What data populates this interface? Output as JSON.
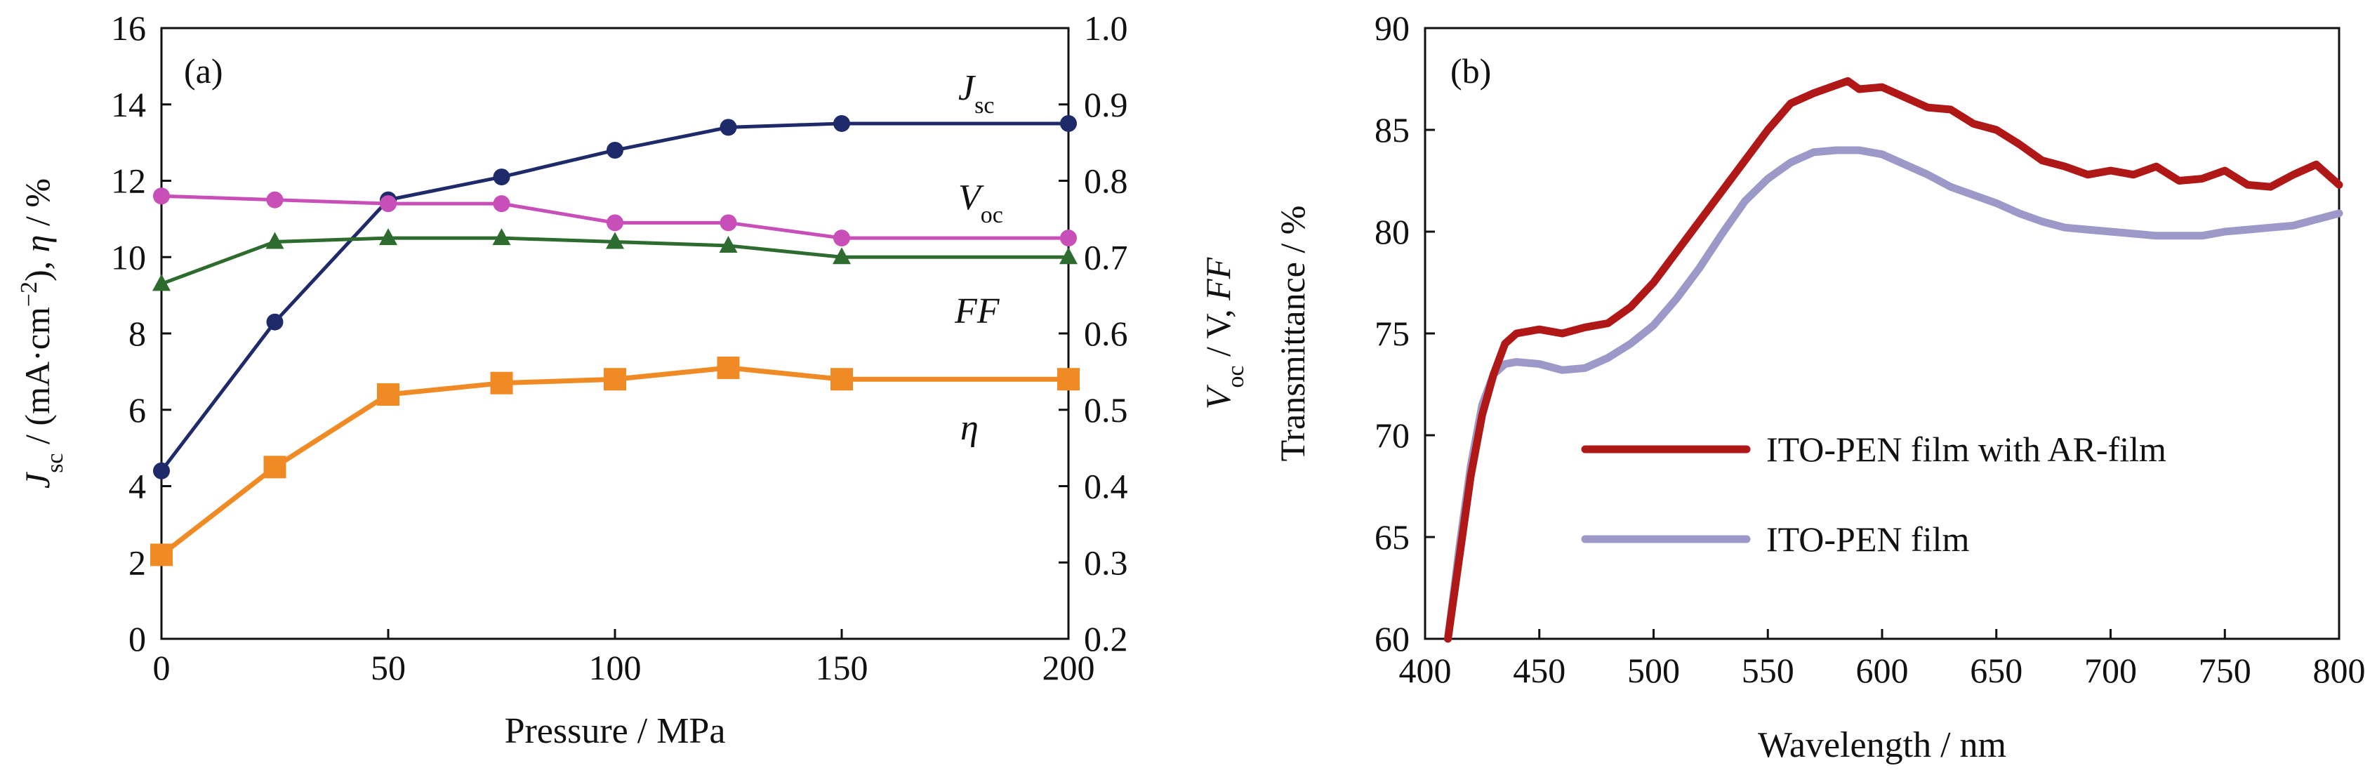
{
  "chart_data": [
    {
      "panel": "(a)",
      "type": "line",
      "xlabel": "Pressure / MPa",
      "ylabel_left_parts": [
        "J",
        "sc",
        " / (mA·cm",
        "−2",
        "), ",
        "η",
        " / %"
      ],
      "ylabel_right_parts": [
        "V",
        "oc",
        " / V, ",
        "FF"
      ],
      "xlim": [
        0,
        200
      ],
      "xticks": [
        0,
        50,
        100,
        150,
        200
      ],
      "ylim_left": [
        0,
        16
      ],
      "yticks_left": [
        0,
        2,
        4,
        6,
        8,
        10,
        12,
        14,
        16
      ],
      "ylim_right": [
        0.2,
        1.0
      ],
      "yticks_right": [
        "0.2",
        "0.3",
        "0.4",
        "0.5",
        "0.6",
        "0.7",
        "0.8",
        "0.9",
        "1.0"
      ],
      "x": [
        0,
        25,
        50,
        75,
        100,
        125,
        150,
        200
      ],
      "series": [
        {
          "label_main": "J",
          "label_sub": "sc",
          "axis": "left",
          "color": "#1f2a6b",
          "marker": "circle",
          "values": [
            4.4,
            8.3,
            11.5,
            12.1,
            12.8,
            13.4,
            13.5,
            13.5
          ]
        },
        {
          "label_main": "V",
          "label_sub": "oc",
          "axis": "right",
          "color": "#c84fb8",
          "marker": "circle",
          "values": [
            0.78,
            0.775,
            0.77,
            0.77,
            0.745,
            0.745,
            0.725,
            0.725
          ]
        },
        {
          "label_main": "FF",
          "label_sub": "",
          "axis": "right",
          "color": "#2e6b2e",
          "marker": "triangle",
          "values": [
            0.665,
            0.72,
            0.725,
            0.725,
            0.72,
            0.715,
            0.7,
            0.7
          ]
        },
        {
          "label_main": "η",
          "label_sub": "",
          "axis": "left",
          "color": "#f08a24",
          "marker": "square",
          "values": [
            2.2,
            4.5,
            6.4,
            6.7,
            6.8,
            7.1,
            6.8,
            6.8
          ]
        }
      ]
    },
    {
      "panel": "(b)",
      "type": "line",
      "xlabel": "Wavelength / nm",
      "ylabel": "Transmittance / %",
      "xlim": [
        400,
        800
      ],
      "xticks": [
        400,
        450,
        500,
        550,
        600,
        650,
        700,
        750,
        800
      ],
      "ylim": [
        60,
        90
      ],
      "yticks": [
        60,
        65,
        70,
        75,
        80,
        85,
        90
      ],
      "legend": [
        "ITO-PEN film with AR-film",
        "ITO-PEN film"
      ],
      "series": [
        {
          "name": "ITO-PEN film with AR-film",
          "color": "#b01818",
          "x": [
            410,
            415,
            420,
            425,
            430,
            435,
            440,
            450,
            460,
            470,
            480,
            490,
            500,
            510,
            520,
            530,
            540,
            550,
            560,
            570,
            580,
            585,
            590,
            600,
            610,
            620,
            630,
            640,
            650,
            660,
            670,
            680,
            690,
            700,
            710,
            720,
            730,
            740,
            750,
            760,
            770,
            780,
            790,
            800
          ],
          "y": [
            60,
            64,
            68,
            71,
            73,
            74.5,
            75,
            75.2,
            75,
            75.3,
            75.5,
            76.3,
            77.5,
            79,
            80.5,
            82,
            83.5,
            85,
            86.3,
            86.8,
            87.2,
            87.4,
            87,
            87.1,
            86.6,
            86.1,
            86,
            85.3,
            85,
            84.3,
            83.5,
            83.2,
            82.8,
            83,
            82.8,
            83.2,
            82.5,
            82.6,
            83,
            82.3,
            82.2,
            82.8,
            83.3,
            82.3
          ]
        },
        {
          "name": "ITO-PEN film",
          "color": "#9c98c8",
          "x": [
            410,
            415,
            420,
            425,
            430,
            435,
            440,
            450,
            460,
            470,
            480,
            490,
            500,
            510,
            520,
            530,
            540,
            550,
            560,
            570,
            580,
            590,
            600,
            610,
            620,
            630,
            640,
            650,
            660,
            670,
            680,
            690,
            700,
            710,
            720,
            730,
            740,
            750,
            760,
            770,
            780,
            790,
            800
          ],
          "y": [
            60,
            64.5,
            68.5,
            71.5,
            73,
            73.5,
            73.6,
            73.5,
            73.2,
            73.3,
            73.8,
            74.5,
            75.4,
            76.7,
            78.2,
            79.9,
            81.5,
            82.6,
            83.4,
            83.9,
            84,
            84,
            83.8,
            83.3,
            82.8,
            82.2,
            81.8,
            81.4,
            80.9,
            80.5,
            80.2,
            80.1,
            80,
            79.9,
            79.8,
            79.8,
            79.8,
            80,
            80.1,
            80.2,
            80.3,
            80.6,
            80.9
          ]
        }
      ]
    }
  ]
}
